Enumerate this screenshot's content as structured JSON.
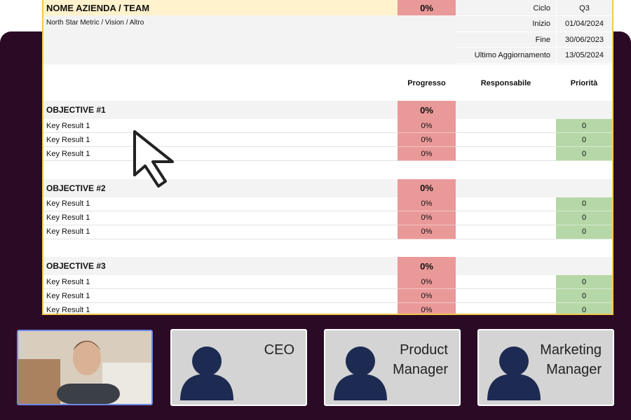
{
  "sheet": {
    "title": "NOME AZIENDA / TEAM",
    "title_progress": "0%",
    "subtitle": "North Star Metric / Vision / Altro",
    "meta": [
      {
        "label": "Ciclo",
        "value": "Q3"
      },
      {
        "label": "Inizio",
        "value": "01/04/2024"
      },
      {
        "label": "Fine",
        "value": "30/06/2023"
      },
      {
        "label": "Ultimo Aggiornamento",
        "value": "13/05/2024"
      }
    ],
    "columns": [
      "Progresso",
      "Responsabile",
      "Priorità"
    ],
    "objectives": [
      {
        "name": "OBJECTIVE #1",
        "progress": "0%",
        "key_results": [
          {
            "name": "Key Result 1",
            "progress": "0%",
            "priority": 0
          },
          {
            "name": "Key Result 1",
            "progress": "0%",
            "priority": 0
          },
          {
            "name": "Key Result 1",
            "progress": "0%",
            "priority": 0
          }
        ]
      },
      {
        "name": "OBJECTIVE #2",
        "progress": "0%",
        "key_results": [
          {
            "name": "Key Result 1",
            "progress": "0%",
            "priority": 0
          },
          {
            "name": "Key Result 1",
            "progress": "0%",
            "priority": 0
          },
          {
            "name": "Key Result 1",
            "progress": "0%",
            "priority": 0
          }
        ]
      },
      {
        "name": "OBJECTIVE #3",
        "progress": "0%",
        "key_results": [
          {
            "name": "Key Result 1",
            "progress": "0%",
            "priority": 0
          },
          {
            "name": "Key Result 1",
            "progress": "0%",
            "priority": 0
          },
          {
            "name": "Key Result 1",
            "progress": "0%",
            "priority": 0
          }
        ]
      }
    ]
  },
  "participants": [
    "CEO",
    "Product Manager",
    "Marketing Manager"
  ]
}
